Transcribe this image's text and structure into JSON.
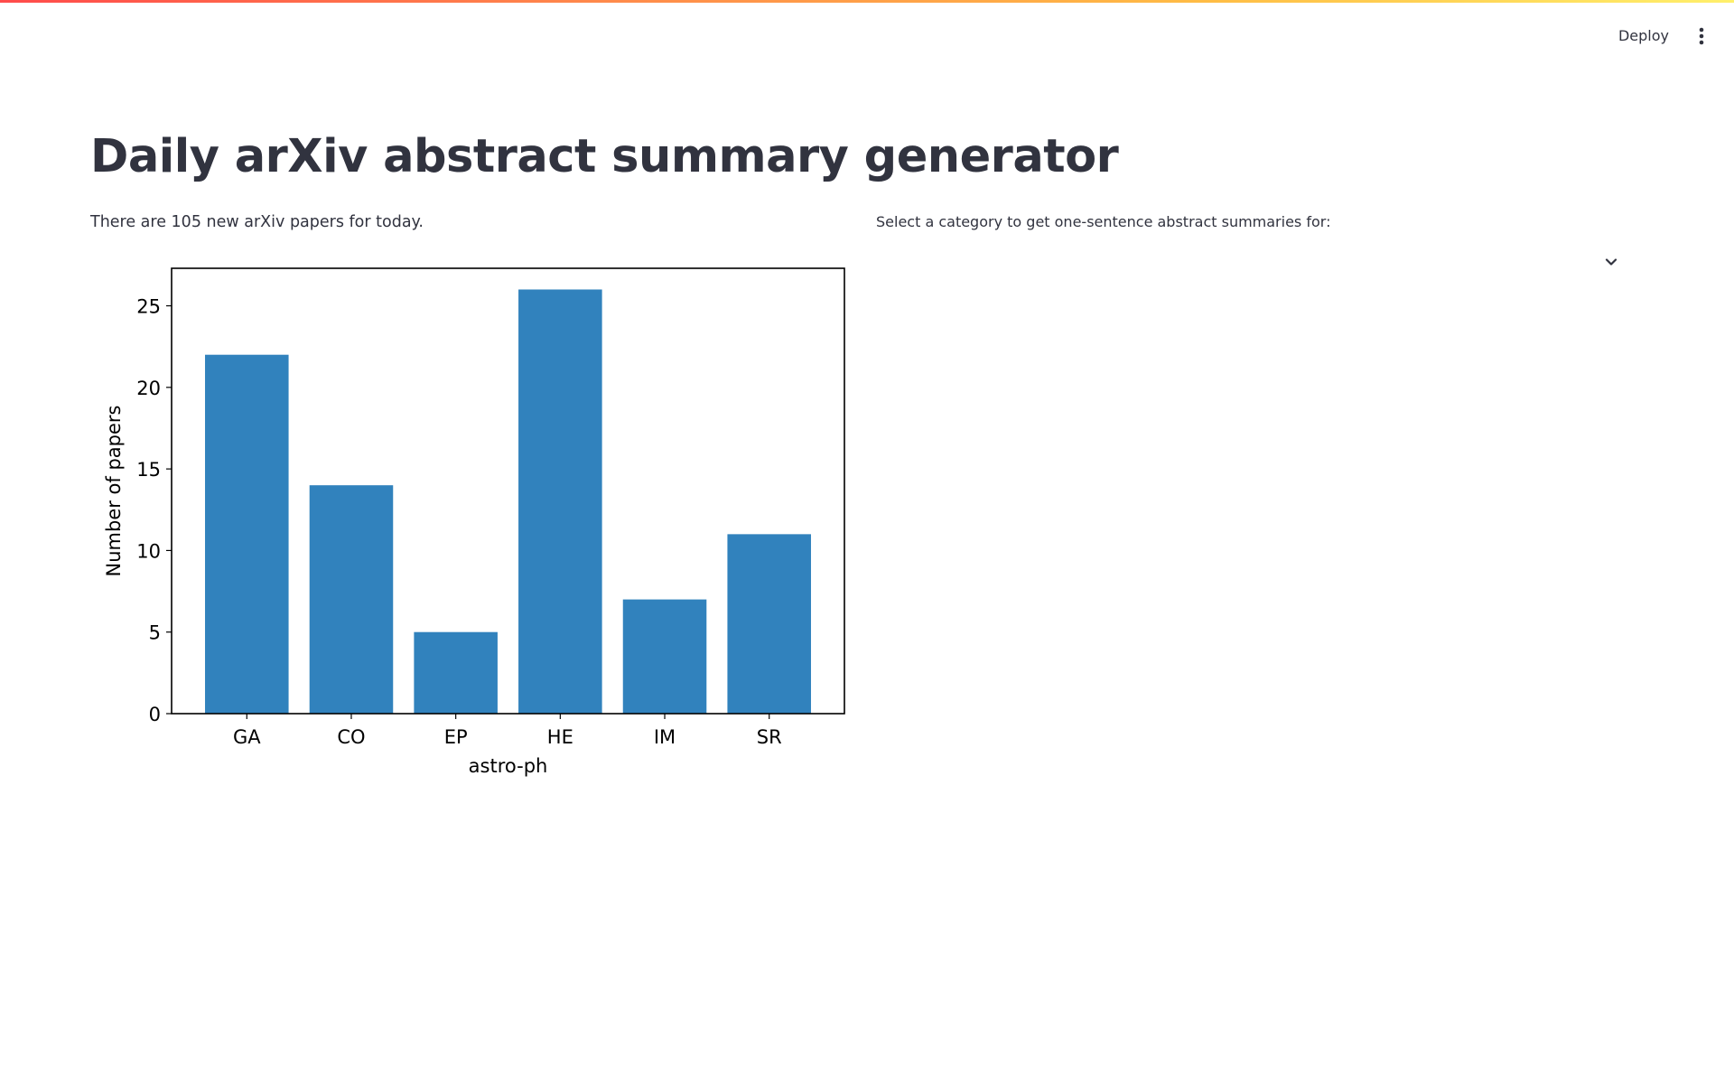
{
  "toolbar": {
    "deploy_label": "Deploy",
    "menu_icon": "vertical-dots-icon"
  },
  "header": {
    "title": "Daily arXiv abstract summary generator"
  },
  "main": {
    "papers_summary": "There are 105 new arXiv papers for today.",
    "category_select": {
      "label": "Select a category to get one-sentence abstract summaries for:",
      "value": "",
      "chevron_icon": "chevron-down-icon"
    }
  },
  "colors": {
    "bar": "#3182bd",
    "accent_gradient": [
      "#ff4b4b",
      "#ffbd45",
      "#fff06b"
    ]
  },
  "chart_data": {
    "type": "bar",
    "categories": [
      "GA",
      "CO",
      "EP",
      "HE",
      "IM",
      "SR"
    ],
    "values": [
      22,
      14,
      5,
      26,
      7,
      11
    ],
    "title": "",
    "xlabel": "astro-ph",
    "ylabel": "Number of papers",
    "ylim": [
      0,
      27.3
    ],
    "yticks": [
      0,
      5,
      10,
      15,
      20,
      25
    ],
    "grid": false
  }
}
